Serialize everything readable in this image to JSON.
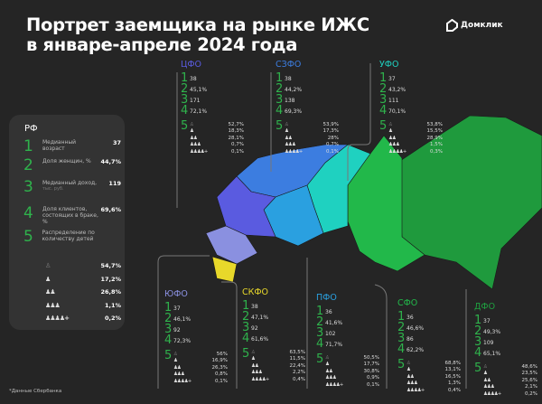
{
  "title_line1": "Портрет заемщика на рынке ИЖС",
  "title_line2": "в январе-апреле 2024 года",
  "logo_text": "Домклик",
  "footnote": "*Данные Сбербанка",
  "rf": {
    "name": "РФ",
    "rows": [
      {
        "num": "1",
        "label": "Медианный возраст",
        "sub": "",
        "value": "37"
      },
      {
        "num": "2",
        "label": "Доля женщин, %",
        "sub": "",
        "value": "44,7%"
      },
      {
        "num": "3",
        "label": "Медианный доход,",
        "sub": "тыс. руб.",
        "value": "119"
      },
      {
        "num": "4",
        "label": "Доля клиентов, состоящих в браке, %",
        "sub": "",
        "value": "69,6%"
      },
      {
        "num": "5",
        "label": "Распределение по количеству детей",
        "sub": "",
        "value": ""
      }
    ],
    "kids": [
      "54,7%",
      "17,2%",
      "26,8%",
      "1,1%",
      "0,2%"
    ]
  },
  "kid_icons": [
    "♙",
    "♟",
    "♟♟",
    "♟♟♟",
    "♟♟♟♟+"
  ],
  "regions": [
    {
      "id": "cfo",
      "name": "ЦФО",
      "color": "#5a5be0",
      "vals": [
        "38",
        "45,1%",
        "171",
        "72,1%"
      ],
      "kids": [
        "52,7%",
        "18,3%",
        "28,1%",
        "0,7%",
        "0,1%"
      ]
    },
    {
      "id": "szfo",
      "name": "СЗФО",
      "color": "#3c7de0",
      "vals": [
        "38",
        "44,2%",
        "138",
        "69,3%"
      ],
      "kids": [
        "53,9%",
        "17,3%",
        "28%",
        "0,7%",
        "0,1%"
      ]
    },
    {
      "id": "ufo",
      "name": "УФО",
      "color": "#1fd1c0",
      "vals": [
        "37",
        "43,2%",
        "111",
        "70,1%"
      ],
      "kids": [
        "53,8%",
        "15,5%",
        "28,9%",
        "1,5%",
        "0,3%"
      ]
    },
    {
      "id": "yufo",
      "name": "ЮФО",
      "color": "#8a90e0",
      "vals": [
        "37",
        "46,1%",
        "92",
        "72,3%"
      ],
      "kids": [
        "56%",
        "16,9%",
        "26,3%",
        "0,8%",
        "0,1%"
      ]
    },
    {
      "id": "skfo",
      "name": "СКФО",
      "color": "#e8d82a",
      "vals": [
        "38",
        "47,1%",
        "92",
        "61,6%"
      ],
      "kids": [
        "63,5%",
        "11,5%",
        "22,4%",
        "2,2%",
        "0,4%"
      ]
    },
    {
      "id": "pfo",
      "name": "ПФО",
      "color": "#2aa0e0",
      "vals": [
        "36",
        "41,6%",
        "102",
        "71,7%"
      ],
      "kids": [
        "50,5%",
        "17,7%",
        "30,8%",
        "0,9%",
        "0,1%"
      ]
    },
    {
      "id": "sfo",
      "name": "СФО",
      "color": "#22b84a",
      "vals": [
        "36",
        "46,6%",
        "86",
        "62,2%"
      ],
      "kids": [
        "68,8%",
        "13,1%",
        "16,5%",
        "1,3%",
        "0,4%"
      ]
    },
    {
      "id": "dfo",
      "name": "ДФО",
      "color": "#1fa040",
      "vals": [
        "37",
        "49,3%",
        "109",
        "65,1%"
      ],
      "kids": [
        "48,6%",
        "23,5%",
        "25,6%",
        "2,1%",
        "0,2%"
      ]
    }
  ]
}
